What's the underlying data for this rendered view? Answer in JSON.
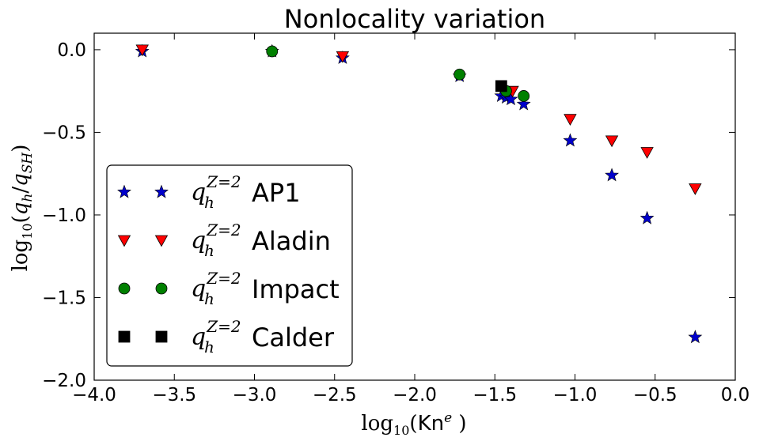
{
  "chart_data": {
    "type": "scatter",
    "title": "Nonlocality variation",
    "xlabel": "log10(Kne )",
    "ylabel": "log10(qh/qSH)",
    "xlim": [
      -4.0,
      0.0
    ],
    "ylim": [
      -2.0,
      0.1
    ],
    "x_ticks": [
      -4.0,
      -3.5,
      -3.0,
      -2.5,
      -2.0,
      -1.5,
      -1.0,
      -0.5,
      0.0
    ],
    "x_tick_labels": [
      "−4.0",
      "−3.5",
      "−3.0",
      "−2.5",
      "−2.0",
      "−1.5",
      "−1.0",
      "−0.5",
      "0.0"
    ],
    "y_ticks": [
      0.0,
      -0.5,
      -1.0,
      -1.5,
      -2.0
    ],
    "y_tick_labels": [
      "0.0",
      "−0.5",
      "−1.0",
      "−1.5",
      "−2.0"
    ],
    "grid": false,
    "legend_position": "lower-left",
    "series": [
      {
        "name": "qhZ=2 AP1",
        "legend_label": "AP1",
        "marker": "star",
        "color": "#0000cc",
        "x": [
          -3.7,
          -2.89,
          -2.45,
          -1.72,
          -1.46,
          -1.43,
          -1.4,
          -1.32,
          -1.03,
          -0.77,
          -0.55,
          -0.25
        ],
        "y": [
          -0.01,
          -0.01,
          -0.05,
          -0.16,
          -0.28,
          -0.29,
          -0.3,
          -0.33,
          -0.55,
          -0.76,
          -1.02,
          -1.74
        ]
      },
      {
        "name": "qhZ=2 Aladin",
        "legend_label": "Aladin",
        "marker": "triangle-down",
        "color": "#ff0000",
        "x": [
          -3.7,
          -2.45,
          -1.39,
          -1.03,
          -0.77,
          -0.55,
          -0.25
        ],
        "y": [
          0.0,
          -0.04,
          -0.25,
          -0.42,
          -0.55,
          -0.62,
          -0.84
        ]
      },
      {
        "name": "qhZ=2 Impact",
        "legend_label": "Impact",
        "marker": "circle",
        "color": "#008000",
        "x": [
          -2.89,
          -1.72,
          -1.43,
          -1.32
        ],
        "y": [
          -0.01,
          -0.15,
          -0.25,
          -0.28
        ]
      },
      {
        "name": "qhZ=2 Calder",
        "legend_label": "Calder",
        "marker": "square",
        "color": "#000000",
        "x": [
          -1.46
        ],
        "y": [
          -0.22
        ]
      }
    ]
  }
}
